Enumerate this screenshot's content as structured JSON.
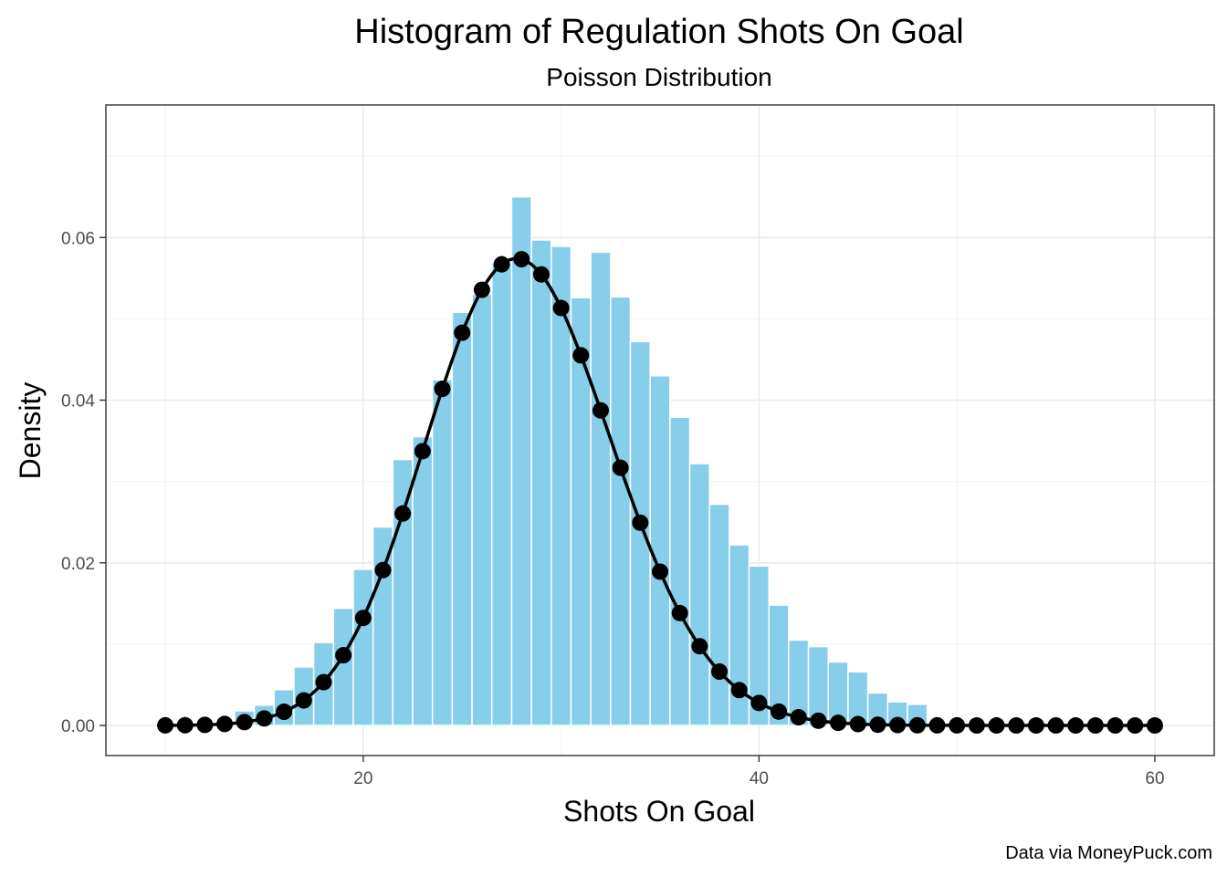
{
  "chart_data": {
    "type": "bar",
    "title": "Histogram of Regulation Shots On Goal",
    "subtitle": "Poisson Distribution",
    "xlabel": "Shots On Goal",
    "ylabel": "Density",
    "caption": "Data via MoneyPuck.com",
    "xlim": [
      7,
      63
    ],
    "ylim": [
      -0.0037,
      0.0763
    ],
    "x_ticks": [
      20,
      40,
      60
    ],
    "x_tick_labels": [
      "20",
      "40",
      "60"
    ],
    "y_ticks": [
      0,
      0.02,
      0.04,
      0.06
    ],
    "y_tick_labels": [
      "0.00",
      "0.02",
      "0.04",
      "0.06"
    ],
    "grid": true,
    "legend": "none",
    "series": [
      {
        "type": "bar",
        "color": "#87CEEB",
        "x": [
          14,
          15,
          16,
          17,
          18,
          19,
          20,
          21,
          22,
          23,
          24,
          25,
          26,
          27,
          28,
          29,
          30,
          31,
          32,
          33,
          34,
          35,
          36,
          37,
          38,
          39,
          40,
          41,
          42,
          43,
          44,
          45,
          46,
          47,
          48
        ],
        "values": [
          0.0018,
          0.0025,
          0.0044,
          0.0072,
          0.0102,
          0.0144,
          0.0192,
          0.0244,
          0.0327,
          0.0355,
          0.0425,
          0.0508,
          0.053,
          0.0569,
          0.065,
          0.0597,
          0.0589,
          0.0526,
          0.0582,
          0.0527,
          0.0472,
          0.043,
          0.0379,
          0.0322,
          0.0272,
          0.0222,
          0.0196,
          0.0148,
          0.0105,
          0.0097,
          0.0078,
          0.0066,
          0.004,
          0.0029,
          0.0026
        ]
      },
      {
        "type": "line",
        "color": "#000000",
        "x": [
          10,
          11,
          12,
          13,
          14,
          15,
          16,
          17,
          18,
          19,
          20,
          21,
          22,
          23,
          24,
          25,
          26,
          27,
          28,
          29,
          30,
          31,
          32,
          33,
          34,
          35,
          36,
          37,
          38,
          39,
          40,
          41,
          42,
          43,
          44,
          45,
          46,
          47,
          48,
          49,
          50,
          51,
          52,
          53,
          54,
          55,
          56,
          57,
          58,
          59,
          60
        ],
        "values": [
          1e-05,
          3e-05,
          7e-05,
          0.00018,
          0.00041,
          0.00086,
          0.00168,
          0.00308,
          0.00532,
          0.00864,
          0.01322,
          0.0191,
          0.02606,
          0.03372,
          0.04139,
          0.04829,
          0.05357,
          0.0567,
          0.05733,
          0.05546,
          0.05133,
          0.04551,
          0.03874,
          0.03168,
          0.02493,
          0.01891,
          0.01382,
          0.00974,
          0.00662,
          0.00435,
          0.00277,
          0.0017,
          0.00101,
          0.00058,
          0.00032,
          0.00017,
          9e-05,
          5e-05,
          2e-05,
          1e-05,
          1e-05,
          0,
          0,
          0,
          0,
          0,
          0,
          0,
          0,
          0,
          0
        ]
      }
    ]
  }
}
